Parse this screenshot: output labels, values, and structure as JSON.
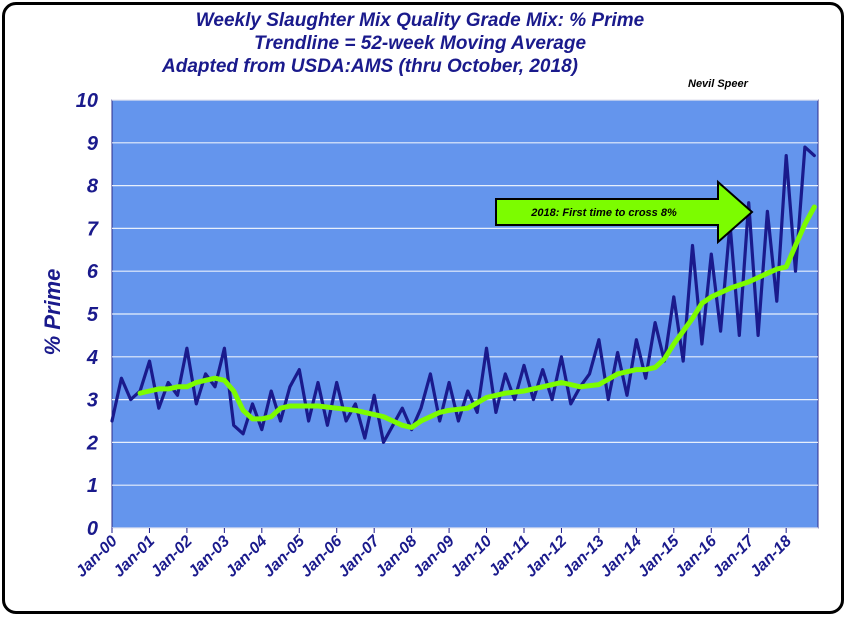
{
  "titles": {
    "line1": "Weekly Slaughter Mix Quality Grade Mix:  % Prime",
    "line2": "Trendline = 52-week Moving Average",
    "line3": "Adapted from USDA:AMS (thru October, 2018)"
  },
  "author": "Nevil Speer",
  "colors": {
    "plot_background": "#6495ED",
    "weekly_series": "#1a1a8c",
    "trend_series": "#7CFC00",
    "text": "#1a1a8c",
    "arrow_fill": "#7CFC00"
  },
  "chart_data": {
    "type": "line",
    "title": "Weekly Slaughter Mix Quality Grade Mix:  % Prime",
    "subtitle": "Trendline = 52-week Moving Average",
    "ylabel": "% Prime",
    "xlabel": "",
    "ylim": [
      0,
      10
    ],
    "yticks": [
      0,
      1,
      2,
      3,
      4,
      5,
      6,
      7,
      8,
      9,
      10
    ],
    "xlim": [
      2000.0,
      2018.85
    ],
    "x_tick_labels": [
      "Jan-00",
      "Jan-01",
      "Jan-02",
      "Jan-03",
      "Jan-04",
      "Jan-05",
      "Jan-06",
      "Jan-07",
      "Jan-08",
      "Jan-09",
      "Jan-10",
      "Jan-11",
      "Jan-12",
      "Jan-13",
      "Jan-14",
      "Jan-15",
      "Jan-16",
      "Jan-17",
      "Jan-18"
    ],
    "grid": "horizontal",
    "annotation": "2018:  First time to cross 8%",
    "series": [
      {
        "name": "",
        "style": "weekly",
        "x": [
          2000.0,
          2000.25,
          2000.5,
          2000.75,
          2001.0,
          2001.25,
          2001.5,
          2001.75,
          2002.0,
          2002.25,
          2002.5,
          2002.75,
          2003.0,
          2003.25,
          2003.5,
          2003.75,
          2004.0,
          2004.25,
          2004.5,
          2004.75,
          2005.0,
          2005.25,
          2005.5,
          2005.75,
          2006.0,
          2006.25,
          2006.5,
          2006.75,
          2007.0,
          2007.25,
          2007.5,
          2007.75,
          2008.0,
          2008.25,
          2008.5,
          2008.75,
          2009.0,
          2009.25,
          2009.5,
          2009.75,
          2010.0,
          2010.25,
          2010.5,
          2010.75,
          2011.0,
          2011.25,
          2011.5,
          2011.75,
          2012.0,
          2012.25,
          2012.5,
          2012.75,
          2013.0,
          2013.25,
          2013.5,
          2013.75,
          2014.0,
          2014.25,
          2014.5,
          2014.75,
          2015.0,
          2015.25,
          2015.5,
          2015.75,
          2016.0,
          2016.25,
          2016.5,
          2016.75,
          2017.0,
          2017.25,
          2017.5,
          2017.75,
          2018.0,
          2018.25,
          2018.5,
          2018.75
        ],
        "y": [
          2.5,
          3.5,
          3.0,
          3.2,
          3.9,
          2.8,
          3.4,
          3.1,
          4.2,
          2.9,
          3.6,
          3.3,
          4.2,
          2.4,
          2.2,
          2.9,
          2.3,
          3.2,
          2.5,
          3.3,
          3.7,
          2.5,
          3.4,
          2.4,
          3.4,
          2.5,
          2.9,
          2.1,
          3.1,
          2.0,
          2.4,
          2.8,
          2.3,
          2.8,
          3.6,
          2.5,
          3.4,
          2.5,
          3.2,
          2.7,
          4.2,
          2.7,
          3.6,
          3.0,
          3.8,
          3.0,
          3.7,
          3.0,
          4.0,
          2.9,
          3.3,
          3.6,
          4.4,
          3.0,
          4.1,
          3.1,
          4.4,
          3.5,
          4.8,
          3.9,
          5.4,
          3.9,
          6.6,
          4.3,
          6.4,
          4.6,
          7.1,
          4.5,
          7.6,
          4.5,
          7.4,
          5.3,
          8.7,
          6.0,
          8.9,
          8.7
        ]
      },
      {
        "name": "",
        "style": "trend",
        "x": [
          2000.75,
          2001.0,
          2001.25,
          2001.5,
          2001.75,
          2002.0,
          2002.25,
          2002.5,
          2002.75,
          2003.0,
          2003.25,
          2003.5,
          2003.75,
          2004.0,
          2004.25,
          2004.5,
          2004.75,
          2005.0,
          2005.5,
          2006.0,
          2006.5,
          2007.0,
          2007.25,
          2007.5,
          2007.75,
          2008.0,
          2008.25,
          2008.5,
          2008.75,
          2009.0,
          2009.5,
          2010.0,
          2010.5,
          2011.0,
          2011.5,
          2012.0,
          2012.5,
          2013.0,
          2013.5,
          2014.0,
          2014.25,
          2014.5,
          2014.75,
          2015.0,
          2015.25,
          2015.5,
          2015.75,
          2016.0,
          2016.5,
          2017.0,
          2017.5,
          2017.75,
          2018.0,
          2018.25,
          2018.5,
          2018.75
        ],
        "y": [
          3.15,
          3.2,
          3.25,
          3.25,
          3.3,
          3.3,
          3.4,
          3.45,
          3.5,
          3.45,
          3.2,
          2.75,
          2.55,
          2.55,
          2.6,
          2.8,
          2.85,
          2.85,
          2.85,
          2.8,
          2.75,
          2.65,
          2.6,
          2.5,
          2.4,
          2.35,
          2.5,
          2.6,
          2.7,
          2.75,
          2.8,
          3.05,
          3.15,
          3.2,
          3.3,
          3.4,
          3.3,
          3.35,
          3.6,
          3.7,
          3.7,
          3.75,
          3.95,
          4.3,
          4.6,
          4.9,
          5.25,
          5.4,
          5.6,
          5.75,
          5.95,
          6.05,
          6.1,
          6.6,
          7.1,
          7.5
        ]
      }
    ]
  }
}
